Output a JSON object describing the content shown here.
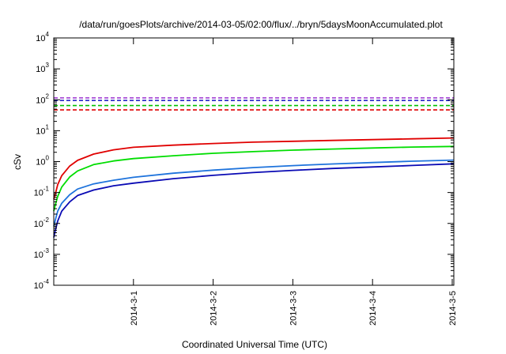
{
  "chart_data": {
    "type": "line",
    "title": "/data/run/goesPlots/archive/2014-03-05/02:00/flux/../bryn/5daysMoonAccumulated.plot",
    "xlabel": "Coordinated Universal Time (UTC)",
    "ylabel": "cSv",
    "yscale": "log",
    "ylim": [
      0.0001,
      10000
    ],
    "xlim": [
      0,
      5.02
    ],
    "grid": false,
    "legend": "none",
    "y_ticks": [
      {
        "value": 0.0001,
        "base": "10",
        "exp": "-4"
      },
      {
        "value": 0.001,
        "base": "10",
        "exp": "-3"
      },
      {
        "value": 0.01,
        "base": "10",
        "exp": "-2"
      },
      {
        "value": 0.1,
        "base": "10",
        "exp": "-1"
      },
      {
        "value": 1,
        "base": "10",
        "exp": "0"
      },
      {
        "value": 10,
        "base": "10",
        "exp": "1"
      },
      {
        "value": 100,
        "base": "10",
        "exp": "2"
      },
      {
        "value": 1000,
        "base": "10",
        "exp": "3"
      },
      {
        "value": 10000,
        "base": "10",
        "exp": "4"
      }
    ],
    "x_ticks": [
      {
        "value": 1,
        "label": "2014-3-1"
      },
      {
        "value": 2,
        "label": "2014-3-2"
      },
      {
        "value": 3,
        "label": "2014-3-3"
      },
      {
        "value": 4,
        "label": "2014-3-4"
      },
      {
        "value": 5,
        "label": "2014-3-5"
      }
    ],
    "thresholds": [
      {
        "value": 115,
        "color": "#9b30d0"
      },
      {
        "value": 95,
        "color": "#1010c0"
      },
      {
        "value": 65,
        "color": "#00c000"
      },
      {
        "value": 47,
        "color": "#e00000"
      }
    ],
    "series": [
      {
        "color": "#e00000",
        "x": [
          0.0,
          0.02,
          0.05,
          0.1,
          0.2,
          0.3,
          0.5,
          0.75,
          1.0,
          1.5,
          2.0,
          2.5,
          3.0,
          3.5,
          4.0,
          4.5,
          5.02
        ],
        "y": [
          0.06,
          0.09,
          0.18,
          0.35,
          0.72,
          1.1,
          1.75,
          2.4,
          2.9,
          3.4,
          3.85,
          4.25,
          4.55,
          4.85,
          5.15,
          5.45,
          5.8
        ]
      },
      {
        "color": "#00dd00",
        "x": [
          0.0,
          0.02,
          0.05,
          0.1,
          0.2,
          0.3,
          0.5,
          0.75,
          1.0,
          1.5,
          2.0,
          2.5,
          3.0,
          3.5,
          4.0,
          4.5,
          5.02
        ],
        "y": [
          0.025,
          0.04,
          0.075,
          0.15,
          0.32,
          0.5,
          0.8,
          1.05,
          1.25,
          1.55,
          1.85,
          2.1,
          2.35,
          2.55,
          2.75,
          2.95,
          3.1
        ]
      },
      {
        "color": "#1e73dc",
        "x": [
          0.0,
          0.02,
          0.05,
          0.1,
          0.2,
          0.3,
          0.5,
          0.75,
          1.0,
          1.5,
          2.0,
          2.5,
          3.0,
          3.5,
          4.0,
          4.5,
          5.02
        ],
        "y": [
          0.008,
          0.013,
          0.025,
          0.045,
          0.085,
          0.13,
          0.19,
          0.25,
          0.31,
          0.42,
          0.53,
          0.64,
          0.74,
          0.84,
          0.93,
          1.03,
          1.12
        ]
      },
      {
        "color": "#0a0ab4",
        "x": [
          0.0,
          0.02,
          0.05,
          0.1,
          0.2,
          0.3,
          0.5,
          0.75,
          1.0,
          1.5,
          2.0,
          2.5,
          3.0,
          3.5,
          4.0,
          4.5,
          5.02
        ],
        "y": [
          0.0035,
          0.006,
          0.012,
          0.025,
          0.05,
          0.08,
          0.12,
          0.165,
          0.2,
          0.28,
          0.36,
          0.44,
          0.52,
          0.6,
          0.67,
          0.75,
          0.85
        ]
      }
    ]
  }
}
